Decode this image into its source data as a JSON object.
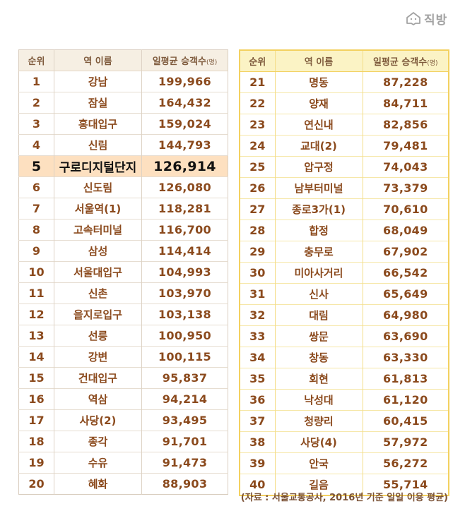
{
  "brand": {
    "name": "직방",
    "icon": "house-chat-icon"
  },
  "headers": {
    "rank": "순위",
    "station": "역 이름",
    "count_main": "일평균 승객수",
    "count_unit": "(명)"
  },
  "highlight_rank": "5",
  "left_rows": [
    {
      "rank": "1",
      "station": "강남",
      "count": "199,966"
    },
    {
      "rank": "2",
      "station": "잠실",
      "count": "164,432"
    },
    {
      "rank": "3",
      "station": "홍대입구",
      "count": "159,024"
    },
    {
      "rank": "4",
      "station": "신림",
      "count": "144,793"
    },
    {
      "rank": "5",
      "station": "구로디지털단지",
      "count": "126,914"
    },
    {
      "rank": "6",
      "station": "신도림",
      "count": "126,080"
    },
    {
      "rank": "7",
      "station": "서울역(1)",
      "count": "118,281"
    },
    {
      "rank": "8",
      "station": "고속터미널",
      "count": "116,700"
    },
    {
      "rank": "9",
      "station": "삼성",
      "count": "114,414"
    },
    {
      "rank": "10",
      "station": "서울대입구",
      "count": "104,993"
    },
    {
      "rank": "11",
      "station": "신촌",
      "count": "103,970"
    },
    {
      "rank": "12",
      "station": "을지로입구",
      "count": "103,138"
    },
    {
      "rank": "13",
      "station": "선릉",
      "count": "100,950"
    },
    {
      "rank": "14",
      "station": "강변",
      "count": "100,115"
    },
    {
      "rank": "15",
      "station": "건대입구",
      "count": "95,837"
    },
    {
      "rank": "16",
      "station": "역삼",
      "count": "94,214"
    },
    {
      "rank": "17",
      "station": "사당(2)",
      "count": "93,495"
    },
    {
      "rank": "18",
      "station": "종각",
      "count": "91,701"
    },
    {
      "rank": "19",
      "station": "수유",
      "count": "91,473"
    },
    {
      "rank": "20",
      "station": "혜화",
      "count": "88,903"
    }
  ],
  "right_rows": [
    {
      "rank": "21",
      "station": "명동",
      "count": "87,228"
    },
    {
      "rank": "22",
      "station": "양재",
      "count": "84,711"
    },
    {
      "rank": "23",
      "station": "연신내",
      "count": "82,856"
    },
    {
      "rank": "24",
      "station": "교대(2)",
      "count": "79,481"
    },
    {
      "rank": "25",
      "station": "압구정",
      "count": "74,043"
    },
    {
      "rank": "26",
      "station": "남부터미널",
      "count": "73,379"
    },
    {
      "rank": "27",
      "station": "종로3가(1)",
      "count": "70,610"
    },
    {
      "rank": "28",
      "station": "합정",
      "count": "68,049"
    },
    {
      "rank": "29",
      "station": "충무로",
      "count": "67,902"
    },
    {
      "rank": "30",
      "station": "미아사거리",
      "count": "66,542"
    },
    {
      "rank": "31",
      "station": "신사",
      "count": "65,649"
    },
    {
      "rank": "32",
      "station": "대림",
      "count": "64,980"
    },
    {
      "rank": "33",
      "station": "쌍문",
      "count": "63,690"
    },
    {
      "rank": "34",
      "station": "창동",
      "count": "63,330"
    },
    {
      "rank": "35",
      "station": "회현",
      "count": "61,813"
    },
    {
      "rank": "36",
      "station": "낙성대",
      "count": "61,120"
    },
    {
      "rank": "37",
      "station": "청량리",
      "count": "60,415"
    },
    {
      "rank": "38",
      "station": "사당(4)",
      "count": "57,972"
    },
    {
      "rank": "39",
      "station": "안국",
      "count": "56,272"
    },
    {
      "rank": "40",
      "station": "길음",
      "count": "55,714"
    }
  ],
  "source": "(자료 : 서울교통공사, 2016년 기준 일일 이용 평균)",
  "colors": {
    "text_brown": "#8b4a1d",
    "highlight_bg": "#fde0c0",
    "left_header_bg": "#f6efe3",
    "right_header_bg": "#fbf3c5",
    "right_border": "#f3d160"
  }
}
